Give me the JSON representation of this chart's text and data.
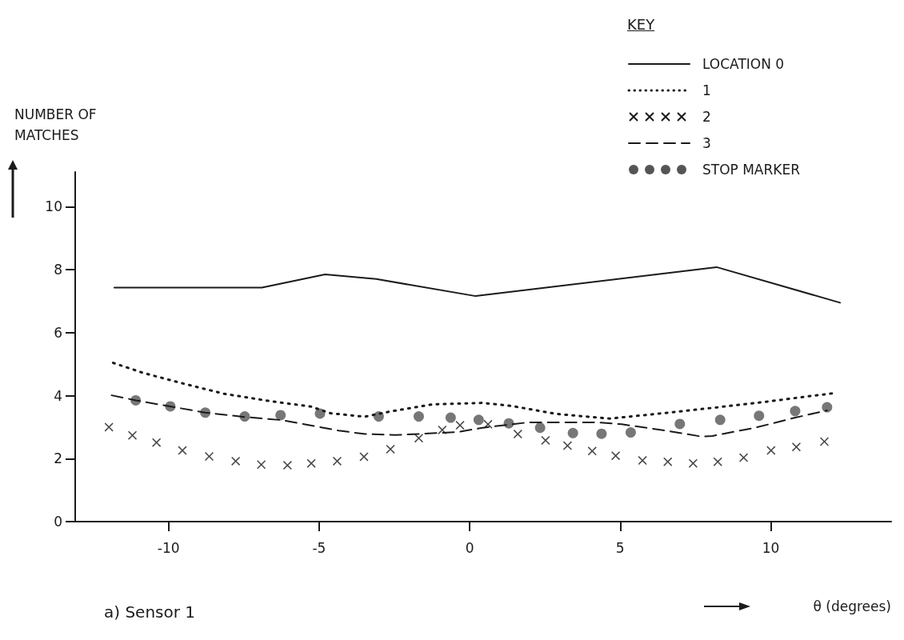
{
  "chart_data": {
    "type": "line",
    "xlabel": "θ (degrees)",
    "ylabel": "NUMBER OF MATCHES",
    "legend_title": "KEY",
    "annotations": [
      "a) Sensor 1"
    ],
    "xlim": [
      -13.1,
      14.0
    ],
    "xticks": [
      -10,
      -5,
      0,
      5,
      10
    ],
    "ylim": [
      0,
      11.1
    ],
    "yticks": [
      0,
      2,
      4,
      6,
      8,
      10
    ],
    "grid": false,
    "legend": "top right",
    "series": [
      {
        "name": "LOCATION 0",
        "line_style": "solid",
        "marker": "none",
        "color": "#1a1a1a",
        "x": [
          -11.8,
          -6.9,
          -4.8,
          -3.1,
          0.2,
          8.2,
          12.3
        ],
        "values": [
          7.43,
          7.43,
          7.85,
          7.7,
          7.16,
          8.08,
          6.95
        ]
      },
      {
        "name": "1",
        "line_style": "dotted",
        "marker": "none",
        "color": "#1a1a1a",
        "x": [
          -11.84,
          -10.84,
          -9.42,
          -8.16,
          -6.66,
          -5.26,
          -4.62,
          -3.49,
          -2.67,
          -1.25,
          0.12,
          0.43,
          1.41,
          2.87,
          4.65,
          6.51,
          8.15,
          9.88,
          11.43,
          12.14
        ],
        "values": [
          5.04,
          4.72,
          4.36,
          4.06,
          3.83,
          3.65,
          3.44,
          3.33,
          3.49,
          3.72,
          3.76,
          3.77,
          3.67,
          3.42,
          3.27,
          3.45,
          3.62,
          3.81,
          4.0,
          4.08
        ]
      },
      {
        "name": "2",
        "type": "scatter",
        "marker": "cross",
        "color": "#1a1a1a",
        "x": [
          -11.98,
          -11.2,
          -10.4,
          -9.54,
          -8.65,
          -7.77,
          -6.92,
          -6.05,
          -5.26,
          -4.4,
          -3.51,
          -2.63,
          -1.69,
          -0.91,
          -0.32,
          0.61,
          1.6,
          2.52,
          3.25,
          4.07,
          4.85,
          5.74,
          6.58,
          7.42,
          8.24,
          9.1,
          10.01,
          10.85,
          11.78
        ],
        "values": [
          3.0,
          2.74,
          2.51,
          2.26,
          2.07,
          1.92,
          1.81,
          1.79,
          1.85,
          1.92,
          2.06,
          2.3,
          2.65,
          2.91,
          3.06,
          3.09,
          2.78,
          2.58,
          2.41,
          2.24,
          2.09,
          1.94,
          1.9,
          1.85,
          1.9,
          2.03,
          2.26,
          2.37,
          2.54
        ]
      },
      {
        "name": "3",
        "line_style": "dashed",
        "marker": "none",
        "color": "#1a1a1a",
        "x": [
          -11.89,
          -11.09,
          -8.78,
          -7.45,
          -6.21,
          -4.35,
          -3.47,
          -2.49,
          -1.69,
          -0.36,
          0.43,
          1.94,
          4.25,
          5.05,
          6.37,
          7.7,
          8.06,
          9.48,
          10.81,
          11.87
        ],
        "values": [
          4.01,
          3.85,
          3.46,
          3.32,
          3.22,
          2.89,
          2.78,
          2.75,
          2.78,
          2.85,
          2.98,
          3.15,
          3.15,
          3.09,
          2.91,
          2.7,
          2.72,
          2.98,
          3.3,
          3.53
        ]
      },
      {
        "name": "STOP MARKER",
        "type": "scatter",
        "marker": "circle",
        "color": "#555555",
        "x": [
          -11.09,
          -9.94,
          -8.78,
          -7.47,
          -6.28,
          -4.97,
          -3.02,
          -1.69,
          -0.63,
          0.3,
          1.3,
          2.34,
          3.43,
          4.38,
          5.35,
          6.98,
          8.32,
          9.61,
          10.81,
          11.87
        ],
        "values": [
          3.85,
          3.66,
          3.46,
          3.34,
          3.38,
          3.43,
          3.34,
          3.34,
          3.3,
          3.23,
          3.12,
          2.98,
          2.81,
          2.79,
          2.83,
          3.1,
          3.23,
          3.36,
          3.51,
          3.63
        ]
      }
    ]
  }
}
